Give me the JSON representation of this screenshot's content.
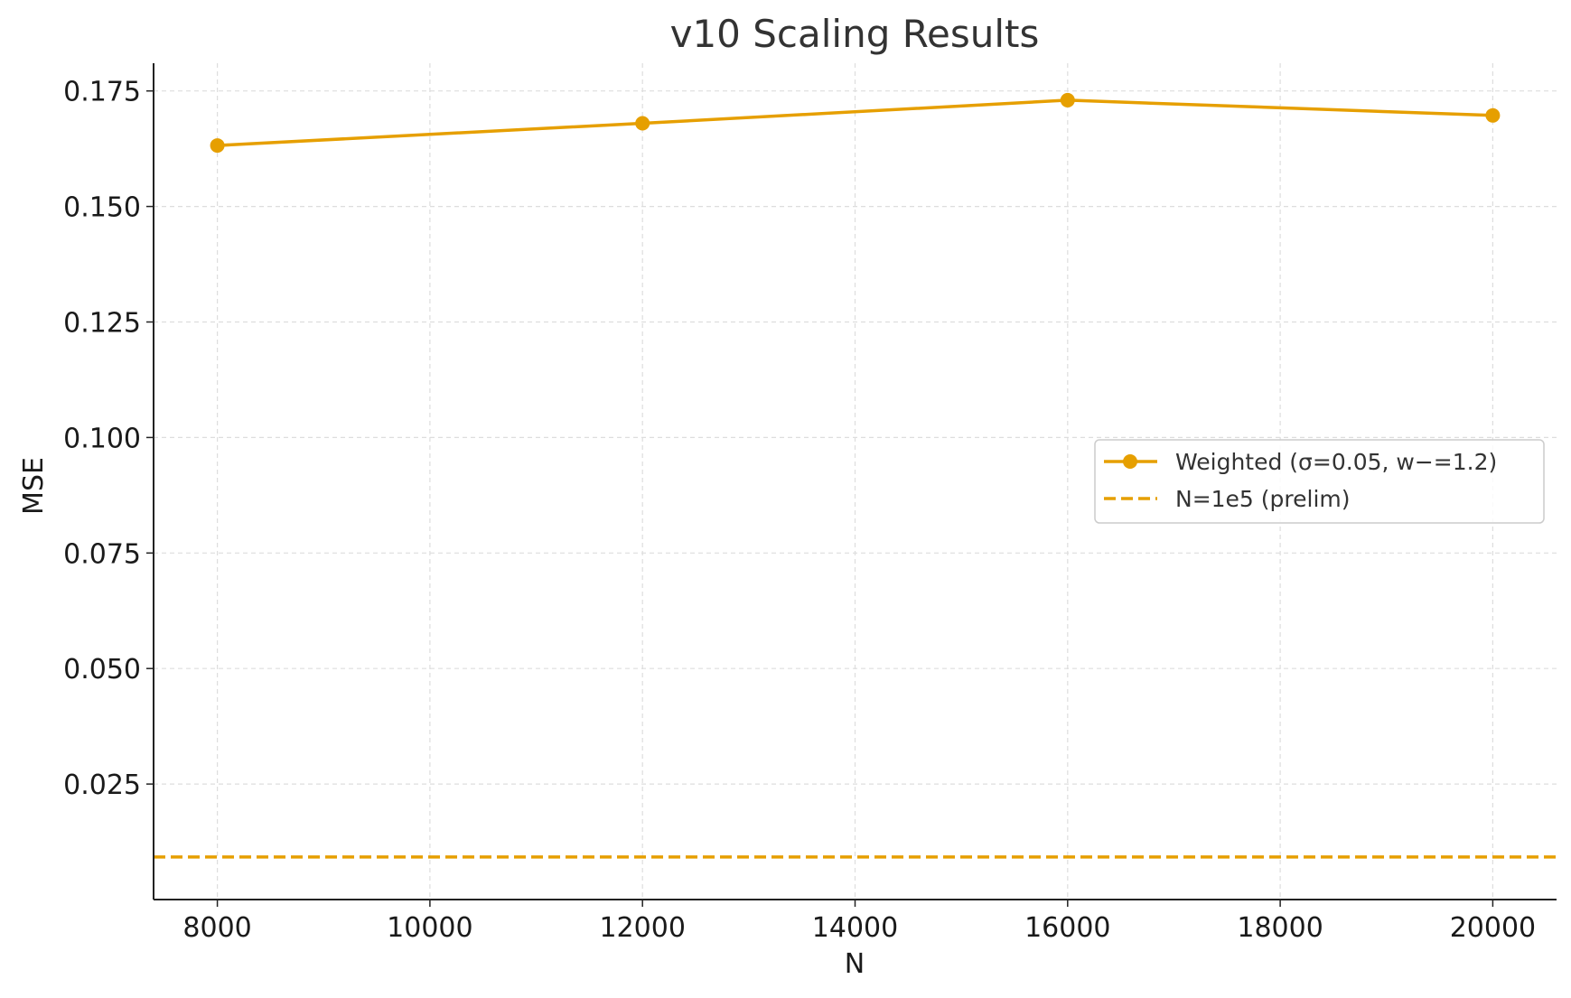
{
  "chart_data": {
    "type": "line",
    "title": "v10 Scaling Results",
    "xlabel": "N",
    "ylabel": "MSE",
    "x": [
      8000,
      12000,
      16000,
      20000
    ],
    "xlim": [
      7400,
      20600
    ],
    "ylim": [
      0.0,
      0.181
    ],
    "xticks": [
      8000,
      10000,
      12000,
      14000,
      16000,
      18000,
      20000
    ],
    "xtick_labels": [
      "8000",
      "10000",
      "12000",
      "14000",
      "16000",
      "18000",
      "20000"
    ],
    "yticks": [
      0.025,
      0.05,
      0.075,
      0.1,
      0.125,
      0.15,
      0.175
    ],
    "ytick_labels": [
      "0.025",
      "0.050",
      "0.075",
      "0.100",
      "0.125",
      "0.150",
      "0.175"
    ],
    "grid": true,
    "legend_position": "center-right",
    "series": [
      {
        "name": "Weighted (σ=0.05, w−=1.2)",
        "style": "solid-with-markers",
        "color": "#E69F00",
        "values": [
          0.1632,
          0.168,
          0.173,
          0.1697
        ]
      }
    ],
    "reference_lines": [
      {
        "name": "N=1e5 (prelim)",
        "orientation": "horizontal",
        "style": "dashed",
        "color": "#E69F00",
        "y": 0.0092
      }
    ]
  }
}
